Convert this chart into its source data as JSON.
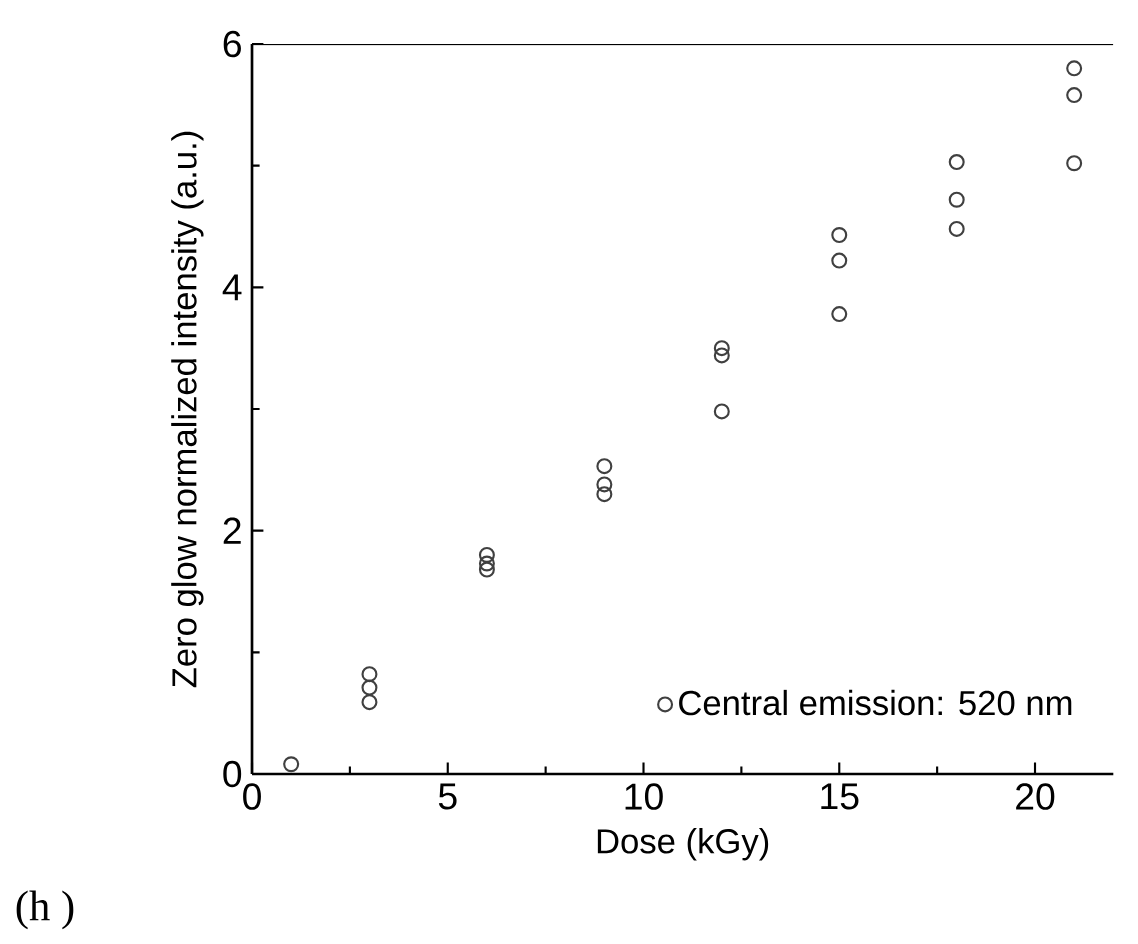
{
  "chart_data": {
    "type": "scatter",
    "xlabel": "Dose (kGy)",
    "ylabel": "Zero glow normalized intensity (a.u.)",
    "x": [
      1,
      3,
      3,
      3,
      6,
      6,
      6,
      9,
      9,
      9,
      12,
      12,
      12,
      15,
      15,
      15,
      18,
      18,
      18,
      21,
      21,
      21
    ],
    "series": [
      {
        "name": "Central emission: 520 nm",
        "color": "#404040",
        "values": [
          0.08,
          0.82,
          0.71,
          0.59,
          1.8,
          1.73,
          1.68,
          2.53,
          2.38,
          2.3,
          3.5,
          3.44,
          2.98,
          4.43,
          4.22,
          3.78,
          5.03,
          4.72,
          4.48,
          5.8,
          5.58,
          5.02
        ]
      }
    ],
    "xlim": [
      0,
      22
    ],
    "ylim": [
      0,
      6
    ],
    "xticks": [
      0,
      5,
      10,
      15,
      20
    ],
    "yticks": [
      0,
      2,
      4,
      6
    ],
    "marker": "circle",
    "legend": "bottom right",
    "grid": false,
    "annotations": [
      "(h )"
    ]
  }
}
